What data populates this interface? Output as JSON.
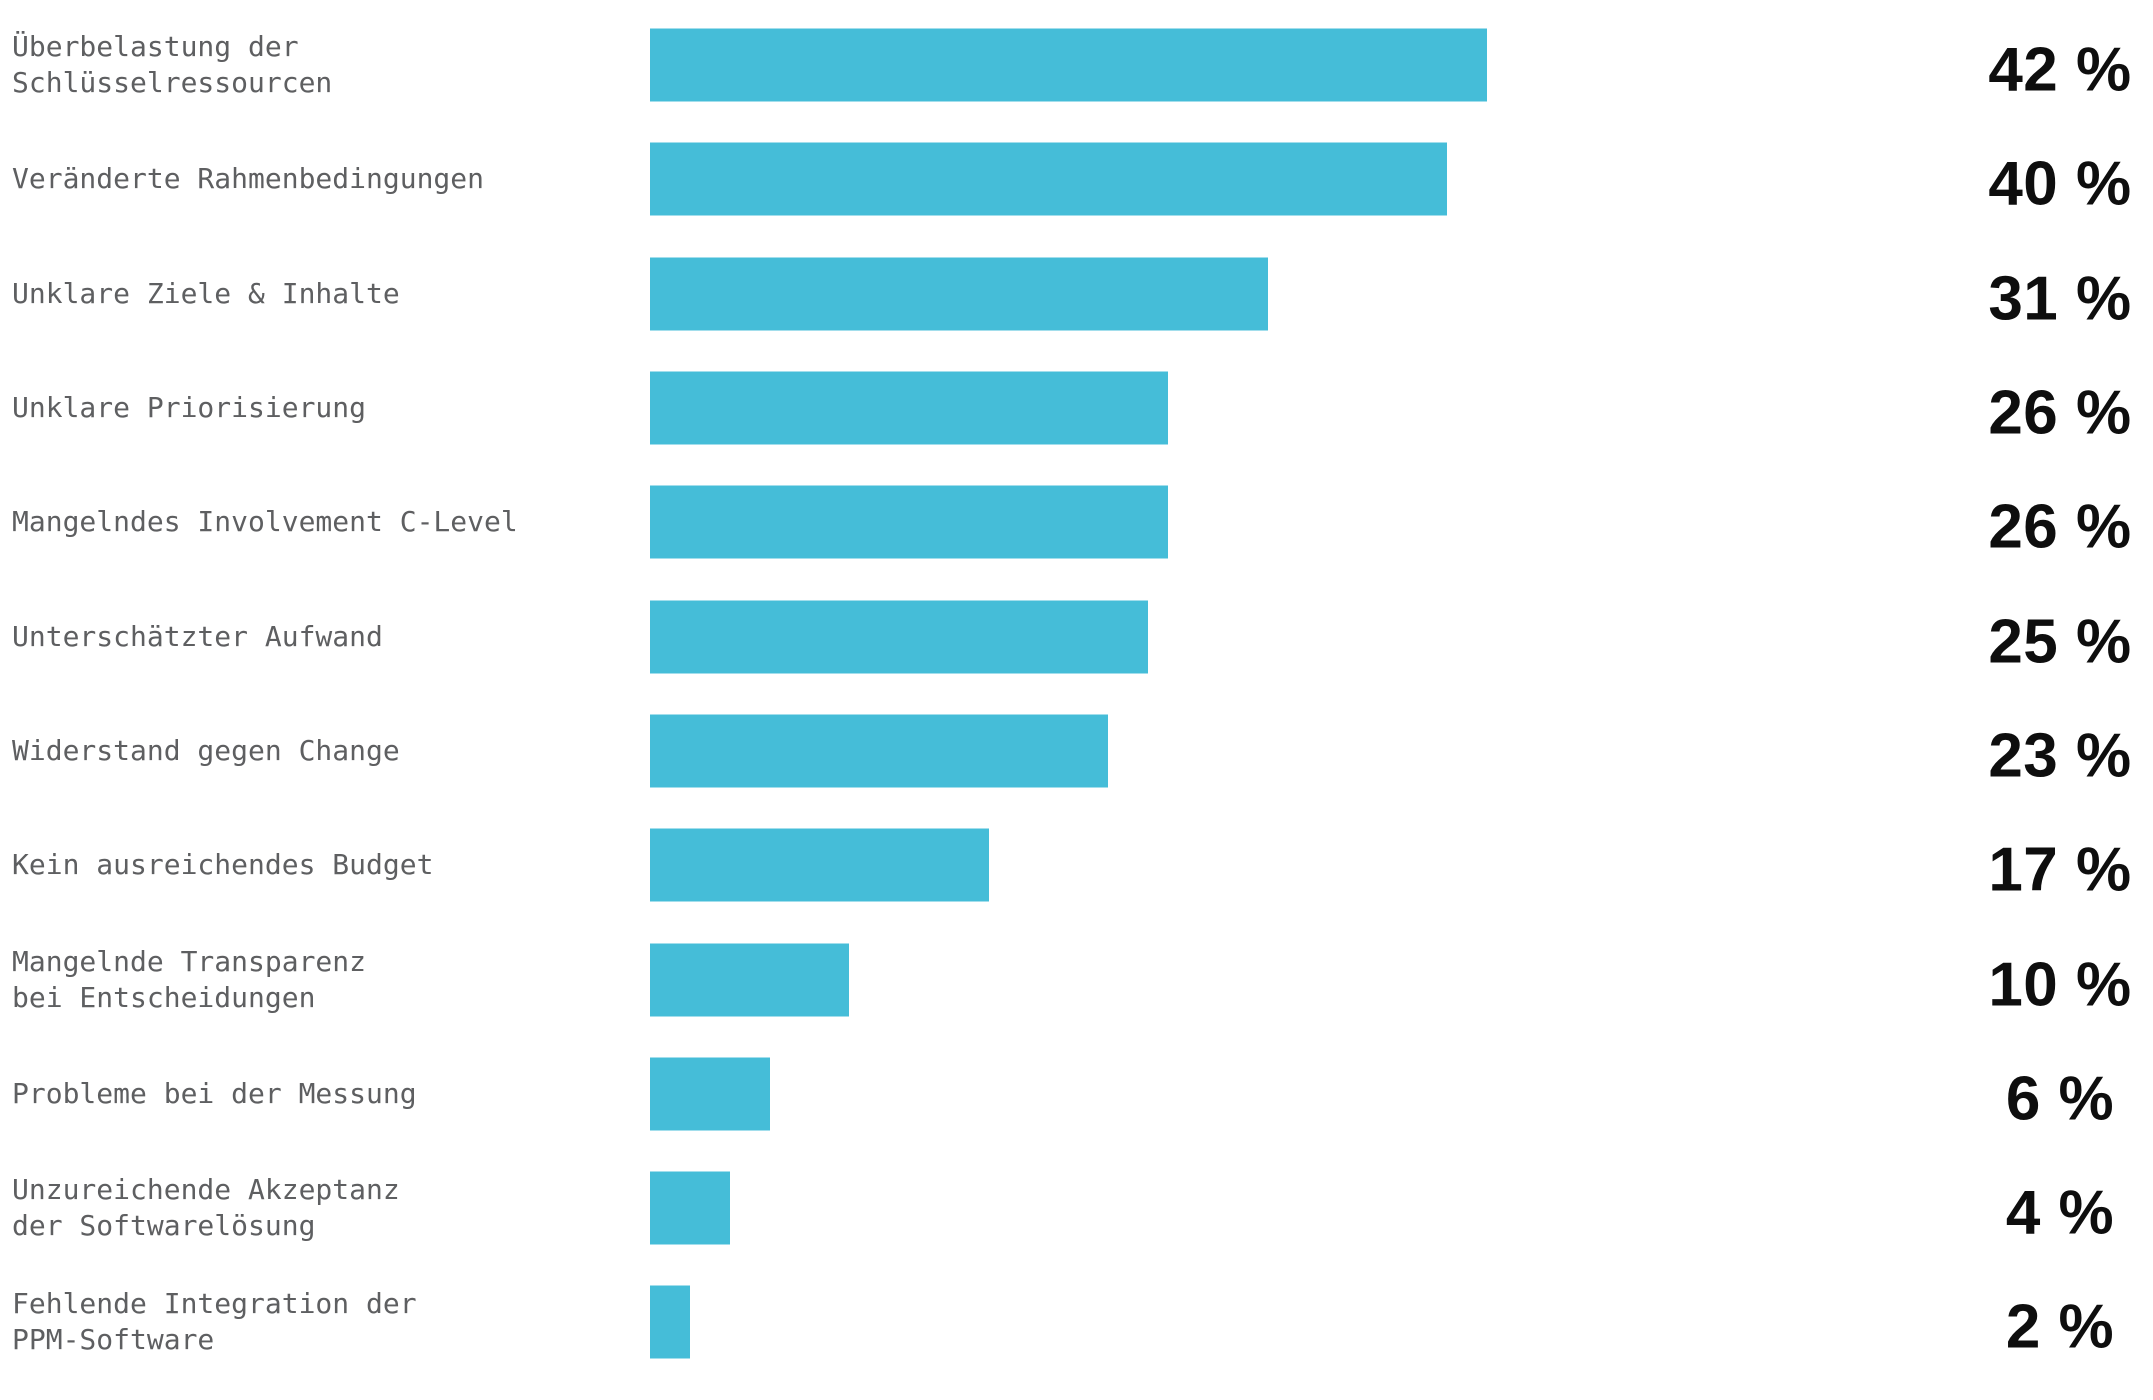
{
  "chart_data": {
    "type": "bar",
    "orientation": "horizontal",
    "title": "",
    "xlabel": "",
    "ylabel": "",
    "unit": "%",
    "grid": false,
    "axes_visible": false,
    "legend": null,
    "value_axis_range": [
      0,
      42
    ],
    "bar_color": "#45bdd8",
    "label_color": "#5e5f61",
    "value_color": "#0e0e0e",
    "categories": [
      "Überbelastung der\nSchlüsselressourcen",
      "Veränderte Rahmenbedingungen",
      "Unklare Ziele & Inhalte",
      "Unklare Priorisierung",
      "Mangelndes Involvement C-Level",
      "Unterschätzter Aufwand",
      "Widerstand gegen Change",
      "Kein ausreichendes Budget",
      "Mangelnde Transparenz\nbei Entscheidungen",
      "Probleme bei der Messung",
      "Unzureichende Akzeptanz\nder Softwarelösung",
      "Fehlende Integration der\nPPM-Software"
    ],
    "values": [
      42,
      40,
      31,
      26,
      26,
      25,
      23,
      17,
      10,
      6,
      4,
      2
    ],
    "value_labels": [
      "42 %",
      "40 %",
      "31 %",
      "26 %",
      "26 %",
      "25 %",
      "23 %",
      "17 %",
      "10 %",
      "6 %",
      "4 %",
      "2 %"
    ]
  }
}
